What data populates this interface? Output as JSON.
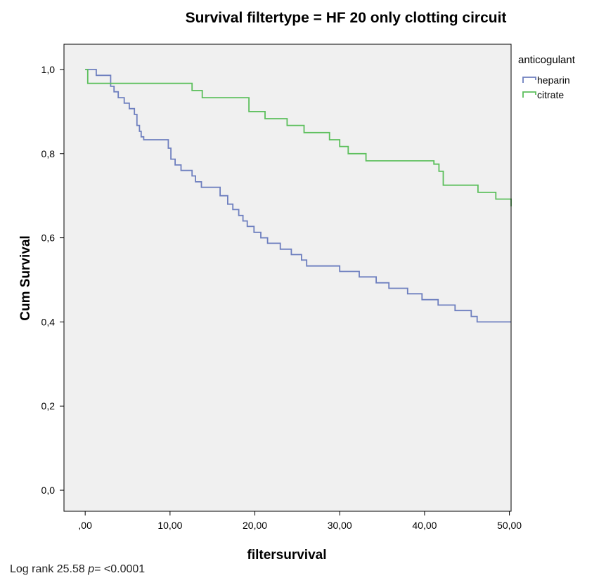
{
  "chart_data": {
    "type": "line",
    "step": true,
    "title": "Survival filtertype = HF 20 only clotting circuit",
    "xlabel": "filtersurvival",
    "ylabel": "Cum Survival",
    "xlim": [
      -2.5,
      50.2
    ],
    "ylim": [
      -0.05,
      1.06
    ],
    "xticks": [
      0,
      10,
      20,
      30,
      40,
      50
    ],
    "xtick_labels": [
      ",00",
      "10,00",
      "20,00",
      "30,00",
      "40,00",
      "50,00"
    ],
    "yticks": [
      0.0,
      0.2,
      0.4,
      0.6,
      0.8,
      1.0
    ],
    "ytick_labels": [
      "0,0",
      "0,2",
      "0,4",
      "0,6",
      "0,8",
      "1,0"
    ],
    "grid": false,
    "plot_background": "#f0f0f0",
    "legend": {
      "title": "anticogulant",
      "position": "outside-right"
    },
    "series": [
      {
        "name": "heparin",
        "color": "#6e7fbf",
        "x": [
          0,
          0.3,
          1.3,
          3.0,
          3.4,
          3.9,
          4.6,
          5.2,
          5.8,
          6.1,
          6.4,
          6.6,
          6.9,
          7.3,
          8.0,
          9.8,
          10.1,
          10.6,
          11.3,
          12.6,
          13.0,
          13.7,
          15.9,
          16.8,
          17.4,
          18.1,
          18.6,
          19.1,
          19.9,
          20.7,
          21.5,
          23.0,
          24.3,
          25.5,
          26.1,
          30.0,
          32.3,
          34.3,
          35.8,
          38.0,
          39.7,
          41.6,
          43.6,
          45.5,
          46.2,
          50.2
        ],
        "y": [
          1.0,
          1.0,
          0.986,
          0.96,
          0.947,
          0.933,
          0.92,
          0.907,
          0.893,
          0.867,
          0.853,
          0.84,
          0.833,
          0.833,
          0.833,
          0.813,
          0.787,
          0.773,
          0.76,
          0.747,
          0.733,
          0.72,
          0.7,
          0.68,
          0.667,
          0.653,
          0.64,
          0.627,
          0.613,
          0.6,
          0.587,
          0.573,
          0.56,
          0.547,
          0.533,
          0.52,
          0.507,
          0.493,
          0.48,
          0.467,
          0.453,
          0.44,
          0.427,
          0.413,
          0.4,
          0.4
        ]
      },
      {
        "name": "citrate",
        "color": "#5cbf5c",
        "x": [
          0,
          0.3,
          12.2,
          12.6,
          13.8,
          18.9,
          19.3,
          21.2,
          23.8,
          25.3,
          25.8,
          28.1,
          28.8,
          30.0,
          31.0,
          33.1,
          41.1,
          41.7,
          42.2,
          45.5,
          46.3,
          48.4,
          50.2
        ],
        "y": [
          1.0,
          0.967,
          0.967,
          0.95,
          0.933,
          0.933,
          0.9,
          0.883,
          0.867,
          0.867,
          0.85,
          0.85,
          0.833,
          0.817,
          0.8,
          0.783,
          0.775,
          0.758,
          0.725,
          0.725,
          0.708,
          0.692,
          0.675
        ]
      }
    ]
  },
  "footnote": {
    "prefix": "Log rank 25.58 ",
    "p_symbol": "p",
    "suffix": "= <0.0001"
  }
}
